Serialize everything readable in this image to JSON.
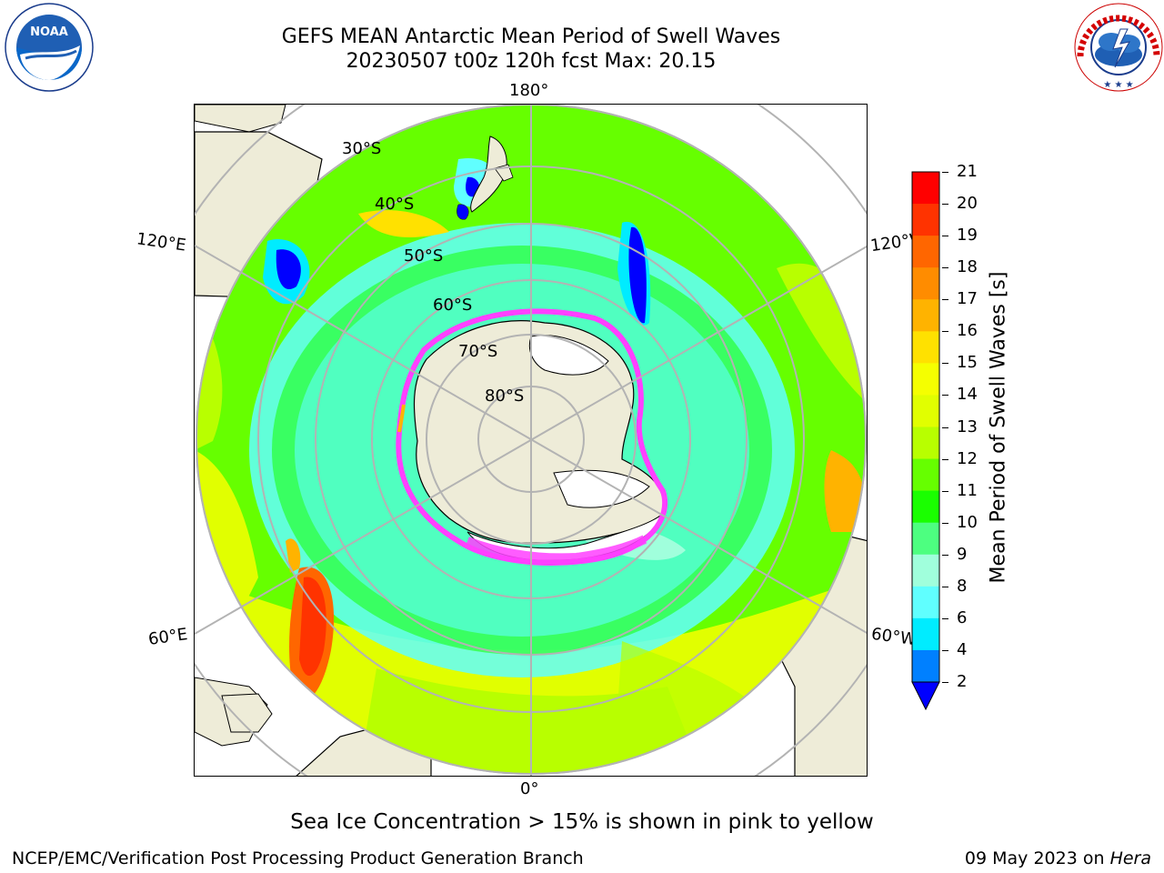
{
  "header": {
    "title_line1": "GEFS MEAN Antarctic Mean Period of Swell Waves",
    "title_line2": "20230507 t00z 120h fcst   Max: 20.15"
  },
  "logos": {
    "left_logo_text": "NOAA",
    "left_logo_ring_text": "NATIONAL OCEANIC AND ATMOSPHERIC ADMINISTRATION · U.S. DEPARTMENT OF COMMERCE",
    "right_logo_ring_text": "NATIONAL WEATHER SERVICE"
  },
  "map": {
    "projection": "south polar stereographic",
    "longitude_labels": {
      "top": "180°",
      "bottom": "0°",
      "upper_left": "120°E",
      "upper_right": "120°W",
      "lower_left": "60°E",
      "lower_right": "60°W"
    },
    "latitude_labels": [
      "30°S",
      "40°S",
      "50°S",
      "60°S",
      "70°S",
      "80°S"
    ],
    "land_color": "#eeecd8",
    "sea_ice_colors": [
      "#ff40ff",
      "#ffff00"
    ]
  },
  "colorbar": {
    "title": "Mean Period of Swell Waves [s]",
    "ticks": [
      "21",
      "20",
      "19",
      "18",
      "17",
      "16",
      "15",
      "14",
      "13",
      "12",
      "11",
      "10",
      "9",
      "8",
      "6",
      "4",
      "2"
    ],
    "levels": [
      {
        "value": "20",
        "color": "#ff0000"
      },
      {
        "value": "19",
        "color": "#ff3300"
      },
      {
        "value": "18",
        "color": "#ff6600"
      },
      {
        "value": "17",
        "color": "#ff8c00"
      },
      {
        "value": "16",
        "color": "#ffb300"
      },
      {
        "value": "15",
        "color": "#ffe100"
      },
      {
        "value": "14",
        "color": "#f5ff00"
      },
      {
        "value": "13",
        "color": "#e1ff00"
      },
      {
        "value": "12",
        "color": "#b8ff00"
      },
      {
        "value": "11",
        "color": "#66ff00"
      },
      {
        "value": "10",
        "color": "#1aff00"
      },
      {
        "value": "9",
        "color": "#4dff80"
      },
      {
        "value": "8",
        "color": "#a0ffdc"
      },
      {
        "value": "6",
        "color": "#60ffff"
      },
      {
        "value": "4",
        "color": "#00ecff"
      },
      {
        "value": "2",
        "color": "#0080ff"
      },
      {
        "value": "extend",
        "color": "#0000ff"
      }
    ]
  },
  "caption": "Sea Ice Concentration > 15% is shown in pink to yellow",
  "footer": {
    "left": "NCEP/EMC/Verification Post Processing Product Generation Branch",
    "date": "09 May 2023 on ",
    "machine": "Hera"
  }
}
